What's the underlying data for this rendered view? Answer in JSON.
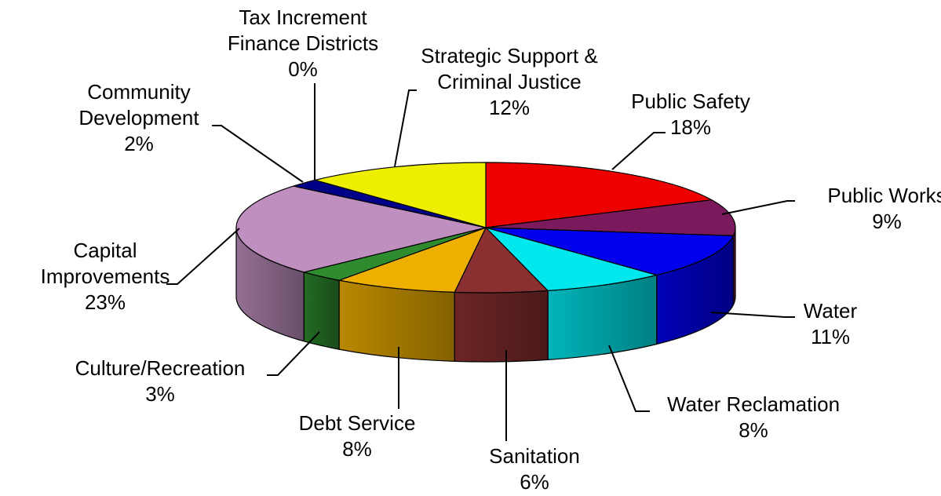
{
  "chart_data": {
    "type": "pie",
    "style": "3d",
    "title": "",
    "unit": "%",
    "slices": [
      {
        "name": "Public Safety",
        "value": 18,
        "color": "#ee0000"
      },
      {
        "name": "Public Works",
        "value": 9,
        "color": "#7a1a5c"
      },
      {
        "name": "Water",
        "value": 11,
        "color": "#0000ee"
      },
      {
        "name": "Water Reclamation",
        "value": 8,
        "color": "#00e8ee"
      },
      {
        "name": "Sanitation",
        "value": 6,
        "color": "#8b3030"
      },
      {
        "name": "Debt Service",
        "value": 8,
        "color": "#eeb000"
      },
      {
        "name": "Culture/Recreation",
        "value": 3,
        "color": "#2e8b2e"
      },
      {
        "name": "Capital Improvements",
        "value": 23,
        "color": "#bf8fbf"
      },
      {
        "name": "Community Development",
        "value": 2,
        "color": "#000088"
      },
      {
        "name": "Tax Increment Finance Districts",
        "value": 0,
        "color": "#000000"
      },
      {
        "name": "Strategic Support & Criminal Justice",
        "value": 12,
        "color": "#eeee00"
      }
    ]
  },
  "labels": [
    {
      "lines": [
        "Public  Safety"
      ],
      "pct": "18%"
    },
    {
      "lines": [
        "Public  Works"
      ],
      "pct": "9%"
    },
    {
      "lines": [
        "Water"
      ],
      "pct": "11%"
    },
    {
      "lines": [
        "Water Reclamation"
      ],
      "pct": "8%"
    },
    {
      "lines": [
        "Sanitation"
      ],
      "pct": "6%"
    },
    {
      "lines": [
        "Debt Service"
      ],
      "pct": "8%"
    },
    {
      "lines": [
        "Culture/Recreation"
      ],
      "pct": "3%"
    },
    {
      "lines": [
        "Capital",
        "Improvements"
      ],
      "pct": "23%"
    },
    {
      "lines": [
        "Community",
        "Development"
      ],
      "pct": "2%"
    },
    {
      "lines": [
        "Tax Increment",
        "Finance Districts"
      ],
      "pct": "0%"
    },
    {
      "lines": [
        "Strategic Support &",
        "Criminal Justice"
      ],
      "pct": "12%"
    }
  ]
}
